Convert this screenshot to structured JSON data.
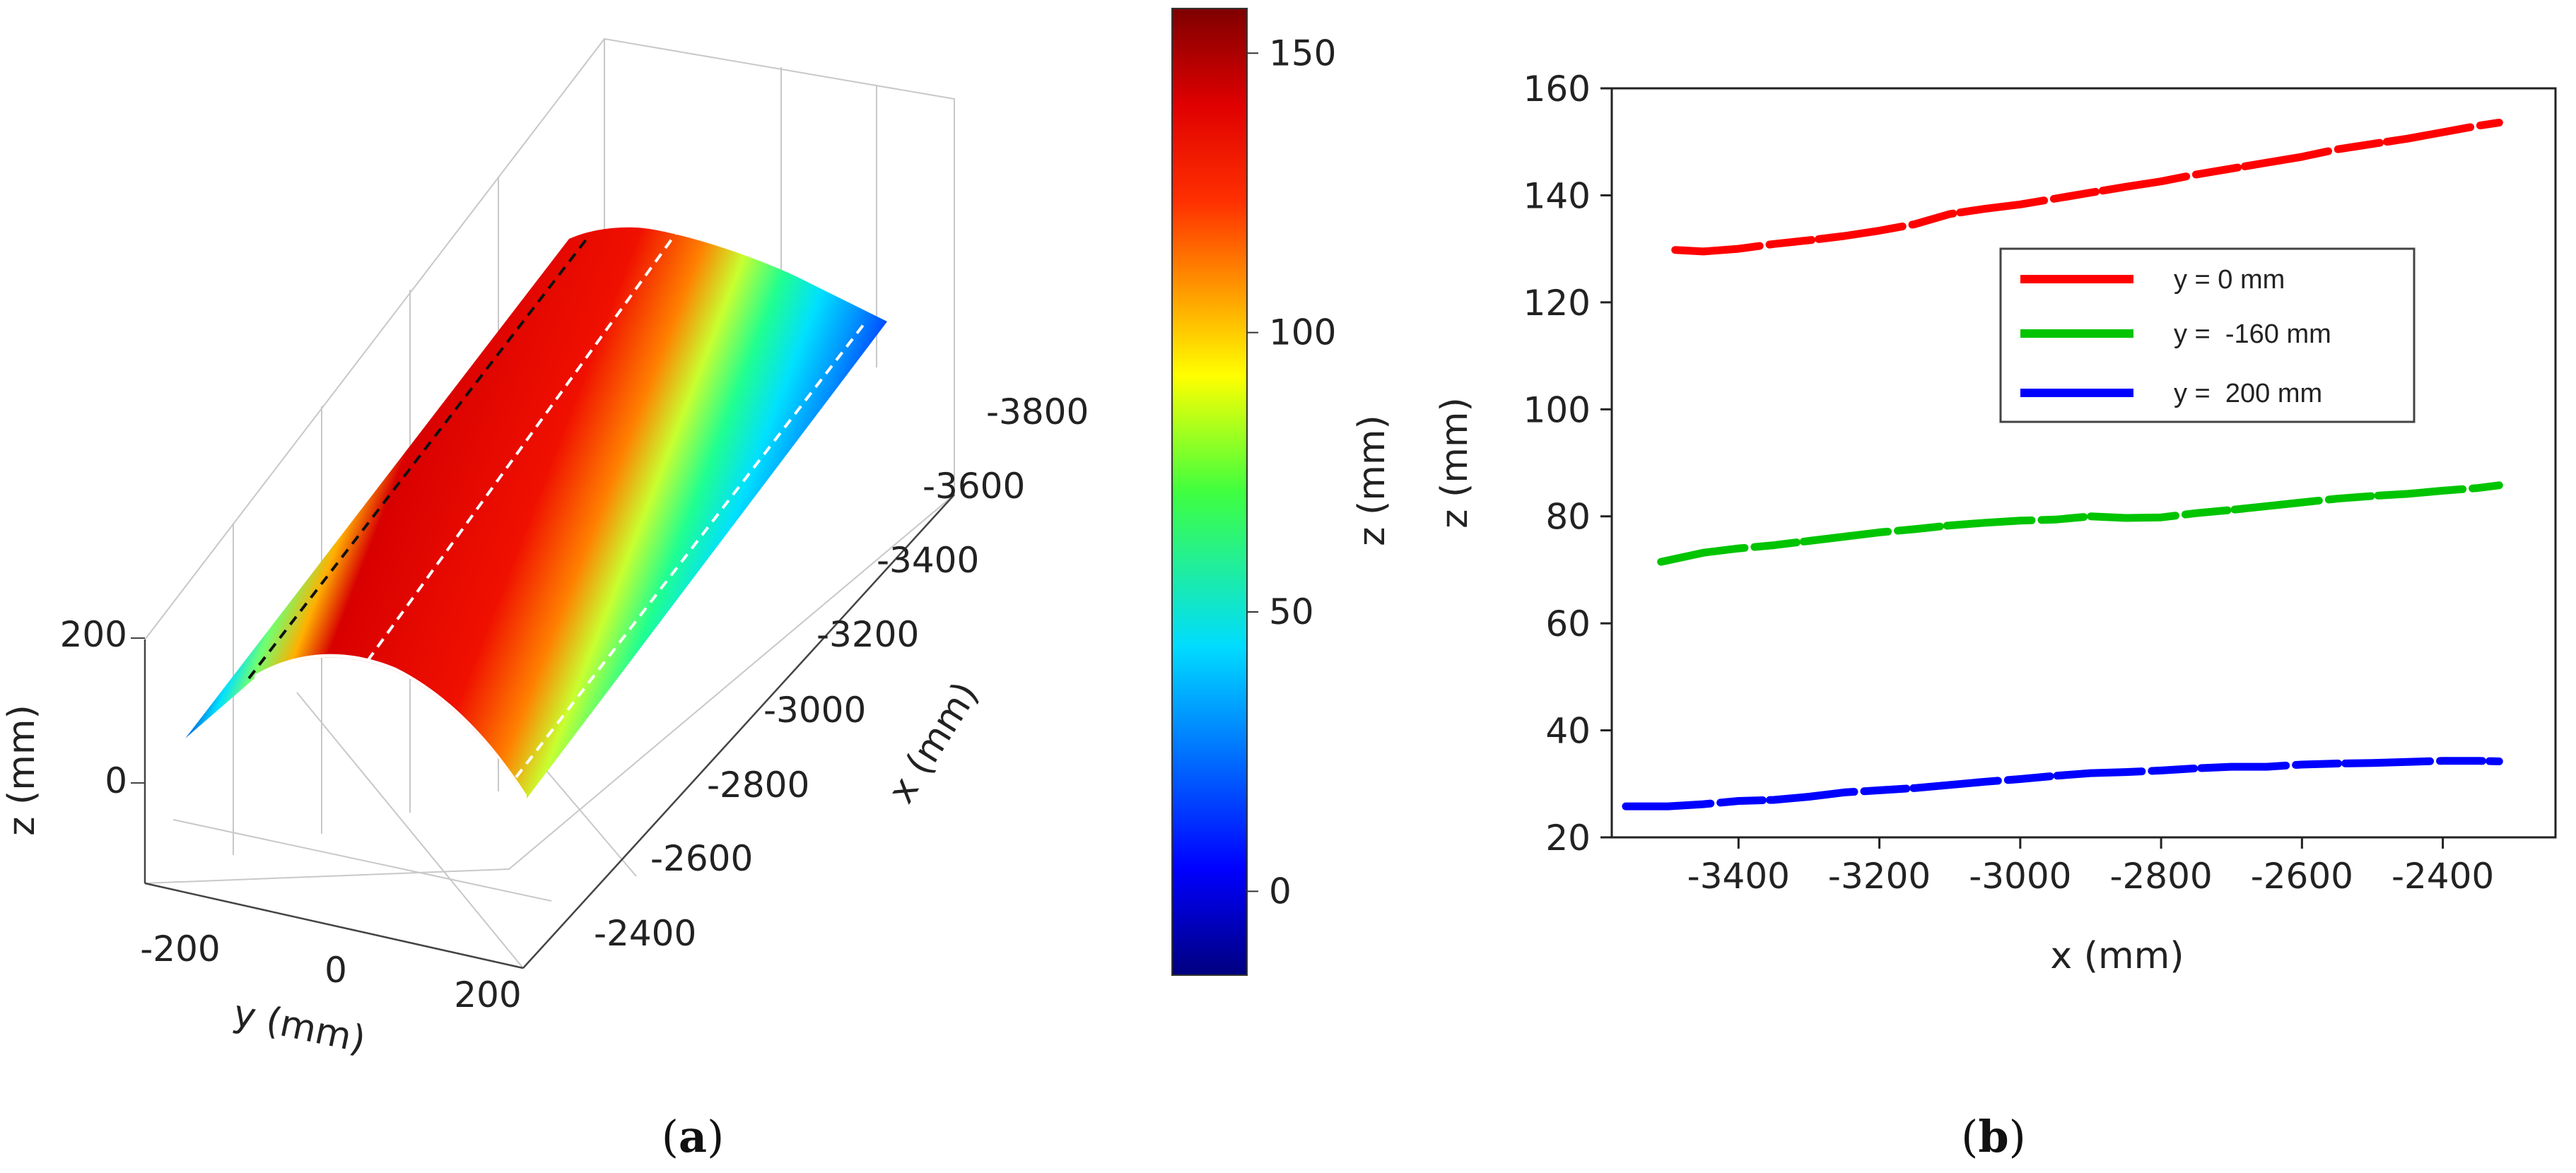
{
  "figure": {
    "panel_a_label": {
      "open": "(",
      "letter": "a",
      "close": ")"
    },
    "panel_b_label": {
      "open": "(",
      "letter": "b",
      "close": ")"
    }
  },
  "chart_data": [
    {
      "id": "panel-a",
      "type": "surface3d",
      "description_title": "",
      "x_label": "x (mm)",
      "y_label": "y (mm)",
      "z_label": "z (mm)",
      "x_ticks": [
        -3800,
        -3600,
        -3400,
        -3200,
        -3000,
        -2800,
        -2600,
        -2400
      ],
      "y_ticks": [
        -200,
        0,
        200
      ],
      "z_ticks": [
        200,
        0
      ],
      "colorbar": {
        "label": "z (mm)",
        "range": [
          -15,
          158
        ],
        "ticks": [
          150,
          100,
          50,
          0
        ],
        "colormap": "jet"
      },
      "section_lines_y_mm": [
        -160,
        0,
        200
      ]
    },
    {
      "id": "panel-b",
      "type": "line",
      "xlabel": "x (mm)",
      "ylabel": "z (mm)",
      "xlim": [
        -3580,
        -2240
      ],
      "ylim": [
        20,
        160
      ],
      "x_ticks": [
        -3400,
        -3200,
        -3000,
        -2800,
        -2600,
        -2400
      ],
      "y_ticks": [
        160,
        140,
        120,
        100,
        80,
        60,
        40,
        20
      ],
      "legend_position": "upper-right",
      "series": [
        {
          "name": "y = 0 mm",
          "color": "#ff0000",
          "x": [
            -3490,
            -3450,
            -3400,
            -3350,
            -3300,
            -3250,
            -3200,
            -3150,
            -3100,
            -3050,
            -3000,
            -2950,
            -2900,
            -2850,
            -2800,
            -2750,
            -2700,
            -2650,
            -2600,
            -2550,
            -2500,
            -2450,
            -2400,
            -2350,
            -2320
          ],
          "y": [
            129.8,
            129.5,
            130.0,
            130.9,
            131.6,
            132.4,
            133.4,
            134.6,
            136.5,
            137.5,
            138.3,
            139.4,
            140.5,
            141.6,
            142.6,
            143.9,
            145.0,
            146.1,
            147.2,
            148.6,
            149.6,
            150.6,
            151.8,
            153.0,
            153.6
          ]
        },
        {
          "name": "y =  -160 mm",
          "color": "#00c400",
          "x": [
            -3510,
            -3450,
            -3400,
            -3350,
            -3300,
            -3250,
            -3200,
            -3150,
            -3100,
            -3050,
            -3000,
            -2950,
            -2900,
            -2850,
            -2800,
            -2750,
            -2700,
            -2650,
            -2600,
            -2550,
            -2500,
            -2450,
            -2400,
            -2350,
            -2320
          ],
          "y": [
            71.5,
            73.2,
            74.0,
            74.6,
            75.4,
            76.2,
            77.0,
            77.6,
            78.3,
            78.8,
            79.2,
            79.4,
            80.0,
            79.7,
            79.8,
            80.6,
            81.2,
            81.9,
            82.6,
            83.3,
            83.8,
            84.2,
            84.8,
            85.3,
            85.8
          ]
        },
        {
          "name": "y =  200 mm",
          "color": "#0000ff",
          "x": [
            -3560,
            -3500,
            -3450,
            -3400,
            -3350,
            -3300,
            -3250,
            -3200,
            -3150,
            -3100,
            -3050,
            -3000,
            -2950,
            -2900,
            -2850,
            -2800,
            -2750,
            -2700,
            -2650,
            -2600,
            -2550,
            -2500,
            -2450,
            -2400,
            -2350,
            -2320
          ],
          "y": [
            25.8,
            25.8,
            26.2,
            26.8,
            27.0,
            27.6,
            28.4,
            28.8,
            29.2,
            29.8,
            30.4,
            30.9,
            31.5,
            32.0,
            32.2,
            32.5,
            32.9,
            33.2,
            33.2,
            33.6,
            33.8,
            33.9,
            34.1,
            34.3,
            34.3,
            34.2
          ]
        }
      ]
    }
  ]
}
